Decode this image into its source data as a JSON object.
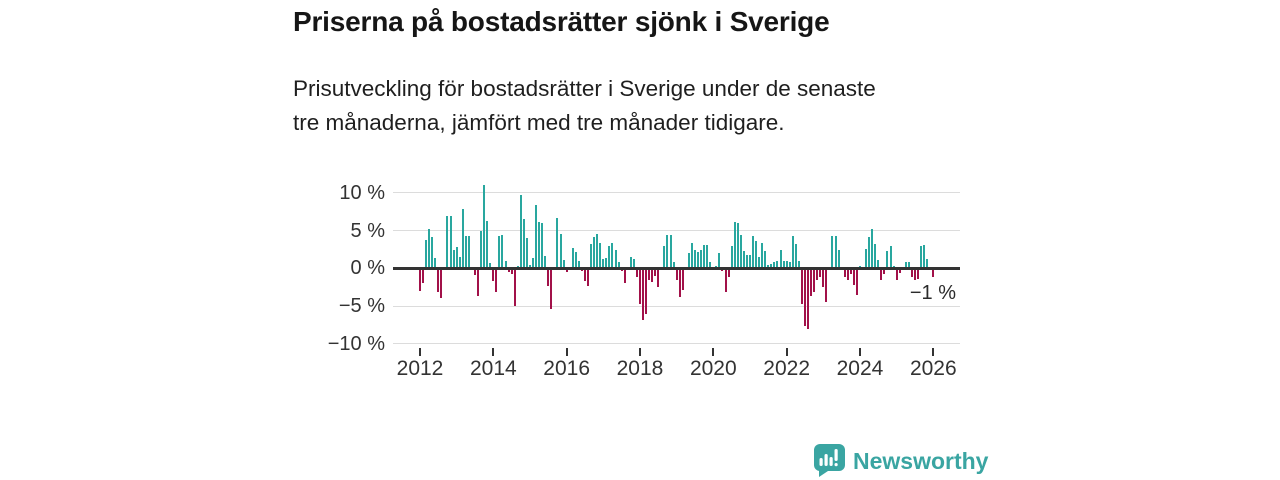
{
  "header": {
    "title": "Priserna på bostadsrätter sjönk i Sverige",
    "subtitle_line1": "Prisutveckling för bostadsrätter i Sverige under de senaste",
    "subtitle_line2": "tre månaderna, jämfört med tre månader tidigare."
  },
  "annotation": {
    "label": "−1 %"
  },
  "footer": {
    "brand": "Newsworthy"
  },
  "colors": {
    "positive": "#29a79f",
    "negative": "#a21149",
    "brand": "#3aa5a2",
    "axis_text": "#333333",
    "grid": "#dcdcdc",
    "zero_line": "#333333"
  },
  "chart_data": {
    "type": "bar",
    "title": "Priserna på bostadsrätter sjönk i Sverige",
    "unit": "%",
    "frequency": "monthly",
    "start": "2012-01",
    "end": "2026-01",
    "ylim": [
      -12,
      12.5
    ],
    "grid": true,
    "y_ticks": [
      "10 %",
      "5 %",
      "0 %",
      "−5 %",
      "−10 %"
    ],
    "y_tick_values": [
      10,
      5,
      0,
      -5,
      -10
    ],
    "x_ticks": [
      "2012",
      "2014",
      "2016",
      "2018",
      "2020",
      "2022",
      "2024",
      "2026"
    ],
    "last_value_label": "−1 %",
    "values": [
      -2.8,
      -1.7,
      3.8,
      5.2,
      4.2,
      1.4,
      -3.0,
      -3.7,
      0.2,
      7.0,
      6.9,
      2.4,
      2.8,
      1.5,
      7.8,
      4.3,
      4.3,
      0.1,
      -0.7,
      -3.5,
      5.0,
      11.1,
      6.3,
      0.7,
      -1.5,
      -3.0,
      4.3,
      4.4,
      1.0,
      -0.3,
      -0.5,
      -4.8,
      0.3,
      9.7,
      6.6,
      4.0,
      0.4,
      1.3,
      8.4,
      6.2,
      6.0,
      1.6,
      -2.1,
      -5.2,
      0.2,
      6.7,
      4.5,
      1.1,
      -0.3,
      0.1,
      2.7,
      2.2,
      1.0,
      -0.2,
      -1.5,
      -2.2,
      3.2,
      4.1,
      4.5,
      3.4,
      1.2,
      1.3,
      2.9,
      3.3,
      2.4,
      0.8,
      -0.2,
      -1.8,
      0.1,
      1.5,
      1.2,
      -1.0,
      -4.6,
      -6.6,
      -5.9,
      -1.3,
      -1.6,
      -0.8,
      -2.3,
      0.1,
      3.0,
      4.4,
      4.4,
      0.9,
      -1.3,
      -3.6,
      -2.7,
      0.2,
      2.0,
      3.3,
      2.4,
      2.2,
      2.4,
      3.1,
      3.1,
      0.8,
      0.1,
      0.3,
      2.0,
      -0.2,
      -3.0,
      -0.9,
      3.0,
      6.2,
      6.0,
      4.4,
      2.3,
      1.7,
      1.8,
      4.3,
      3.6,
      1.5,
      3.3,
      2.3,
      0.5,
      0.6,
      0.9,
      1.0,
      2.4,
      1.0,
      1.0,
      0.9,
      4.3,
      3.2,
      1.0,
      -4.5,
      -7.5,
      -7.9,
      -3.5,
      -3.0,
      -1.4,
      -1.0,
      -2.3,
      -4.3,
      0.1,
      4.3,
      4.3,
      2.4,
      0.2,
      -0.9,
      -1.4,
      -0.6,
      -2.0,
      -3.3,
      0.3,
      0.2,
      2.6,
      4.1,
      5.2,
      3.2,
      1.1,
      -1.4,
      -0.5,
      2.3,
      3.0,
      0.3,
      -1.3,
      -0.4,
      0.2,
      0.8,
      0.9,
      -1.0,
      -1.3,
      -1.2,
      3.0,
      3.1,
      1.2,
      0.2,
      -1.0
    ]
  }
}
